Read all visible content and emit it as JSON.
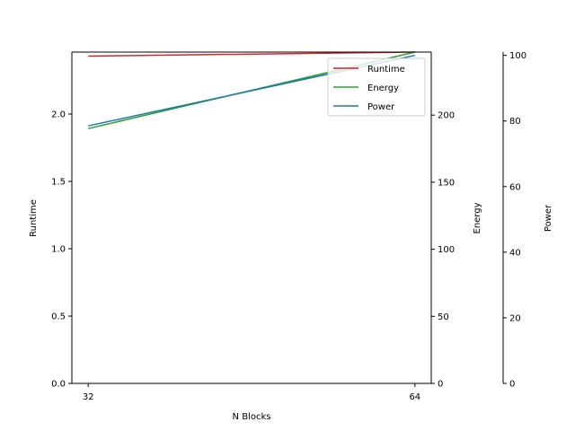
{
  "chart_data": {
    "type": "line",
    "xlabel": "N Blocks",
    "x": [
      32,
      64
    ],
    "x_ticks": [
      32,
      64
    ],
    "x_tick_labels": [
      "32",
      "64"
    ],
    "series": [
      {
        "name": "Runtime",
        "axis": "left",
        "color": "#d62728",
        "values": [
          2.43,
          2.46
        ]
      },
      {
        "name": "Energy",
        "axis": "right",
        "color": "#2ca02c",
        "values": [
          190,
          247
        ]
      },
      {
        "name": "Power",
        "axis": "right2",
        "color": "#1f77b4",
        "values": [
          78.5,
          100
        ]
      }
    ],
    "axes": {
      "left": {
        "label": "Runtime",
        "ylim": [
          0,
          2.46
        ],
        "ticks": [
          0.0,
          0.5,
          1.0,
          1.5,
          2.0
        ],
        "tick_labels": [
          "0.0",
          "0.5",
          "1.0",
          "1.5",
          "2.0"
        ]
      },
      "right": {
        "label": "Energy",
        "ylim": [
          0,
          247
        ],
        "ticks": [
          0,
          50,
          100,
          150,
          200
        ],
        "tick_labels": [
          "0",
          "50",
          "100",
          "150",
          "200"
        ]
      },
      "right2": {
        "label": "Power",
        "ylim": [
          0,
          101
        ],
        "ticks": [
          0,
          20,
          40,
          60,
          80,
          100
        ],
        "tick_labels": [
          "0",
          "20",
          "40",
          "60",
          "80",
          "100"
        ]
      }
    },
    "legend": {
      "position": "top-right",
      "entries": [
        "Runtime",
        "Energy",
        "Power"
      ]
    },
    "grid": false
  }
}
